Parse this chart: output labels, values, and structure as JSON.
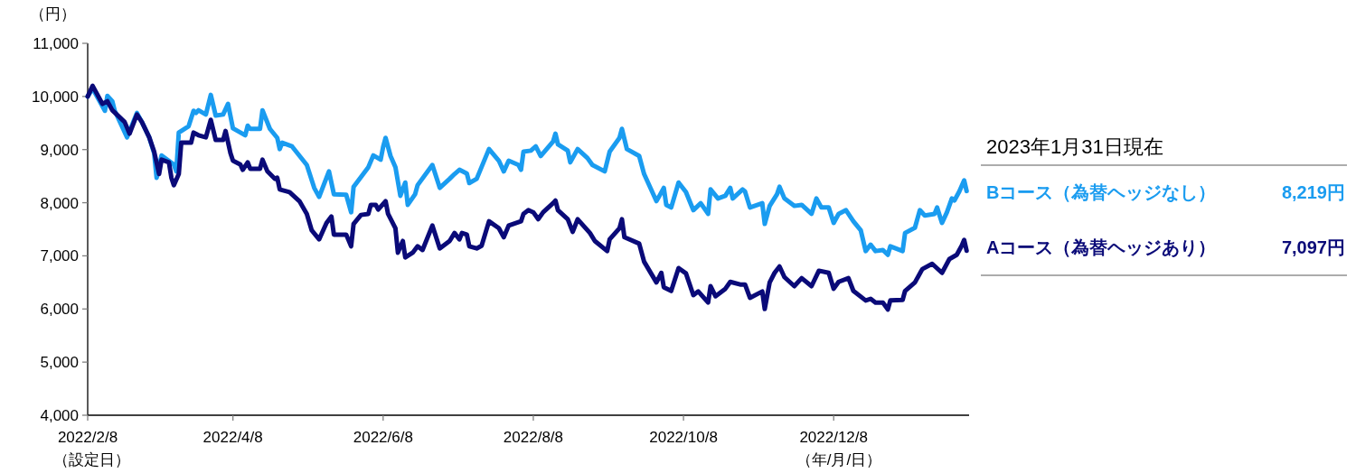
{
  "chart_data": {
    "type": "line",
    "ylabel": "（円）",
    "xlabel": "（年/月/日）",
    "legend_title": "2023年1月31日現在",
    "legend": "right",
    "grid": false,
    "line_style": "solid",
    "marker": "none",
    "xlim": [
      "2022-02-08",
      "2023-02-01"
    ],
    "ylim": [
      4000,
      11000
    ],
    "xticks": [
      {
        "value": "2022-02-08",
        "label": "2022/2/8"
      },
      {
        "value": "2022-04-08",
        "label": "2022/4/8"
      },
      {
        "value": "2022-06-08",
        "label": "2022/6/8"
      },
      {
        "value": "2022-08-08",
        "label": "2022/8/8"
      },
      {
        "value": "2022-10-08",
        "label": "2022/10/8"
      },
      {
        "value": "2022-12-08",
        "label": "2022/12/8"
      }
    ],
    "yticks": [
      {
        "value": 4000,
        "label": "4,000"
      },
      {
        "value": 5000,
        "label": "5,000"
      },
      {
        "value": 6000,
        "label": "6,000"
      },
      {
        "value": 7000,
        "label": "7,000"
      },
      {
        "value": 8000,
        "label": "8,000"
      },
      {
        "value": 9000,
        "label": "9,000"
      },
      {
        "value": 10000,
        "label": "10,000"
      },
      {
        "value": 11000,
        "label": "11,000"
      }
    ],
    "annotations": [
      "（設定日）",
      "8,219円",
      "7,097円"
    ],
    "series": [
      {
        "name": "Bコース（為替ヘッジなし）",
        "color": "#1a9cf0",
        "x": [
          "2022-02-08",
          "2022-02-10",
          "2022-02-15",
          "2022-02-16",
          "2022-02-18",
          "2022-02-19",
          "2022-02-24",
          "2022-02-28",
          "2022-03-02",
          "2022-03-05",
          "2022-03-07",
          "2022-03-08",
          "2022-03-10",
          "2022-03-15",
          "2022-03-16",
          "2022-03-17",
          "2022-03-21",
          "2022-03-23",
          "2022-03-24",
          "2022-03-25",
          "2022-03-28",
          "2022-03-30",
          "2022-04-01",
          "2022-04-04",
          "2022-04-06",
          "2022-04-08",
          "2022-04-13",
          "2022-04-14",
          "2022-04-15",
          "2022-04-19",
          "2022-04-20",
          "2022-04-23",
          "2022-04-26",
          "2022-04-27",
          "2022-04-28",
          "2022-05-02",
          "2022-05-08",
          "2022-05-11",
          "2022-05-13",
          "2022-05-16",
          "2022-05-17",
          "2022-05-19",
          "2022-05-24",
          "2022-05-26",
          "2022-05-27",
          "2022-06-02",
          "2022-06-04",
          "2022-06-07",
          "2022-06-08",
          "2022-06-09",
          "2022-06-11",
          "2022-06-13",
          "2022-06-15",
          "2022-06-17",
          "2022-06-18",
          "2022-06-21",
          "2022-06-22",
          "2022-06-28",
          "2022-07-01",
          "2022-07-05",
          "2022-07-07",
          "2022-07-09",
          "2022-07-12",
          "2022-07-13",
          "2022-07-16",
          "2022-07-21",
          "2022-07-25",
          "2022-07-27",
          "2022-07-29",
          "2022-08-02",
          "2022-08-03",
          "2022-08-04",
          "2022-08-07",
          "2022-08-09",
          "2022-08-11",
          "2022-08-16",
          "2022-08-17",
          "2022-08-18",
          "2022-08-22",
          "2022-08-23",
          "2022-08-26",
          "2022-08-30",
          "2022-09-01",
          "2022-09-06",
          "2022-09-08",
          "2022-09-12",
          "2022-09-13",
          "2022-09-15",
          "2022-09-20",
          "2022-09-22",
          "2022-09-27",
          "2022-09-28",
          "2022-09-30",
          "2022-10-01",
          "2022-10-03",
          "2022-10-06",
          "2022-10-09",
          "2022-10-12",
          "2022-10-15",
          "2022-10-18",
          "2022-10-19",
          "2022-10-22",
          "2022-10-25",
          "2022-10-27",
          "2022-10-28",
          "2022-11-01",
          "2022-11-02",
          "2022-11-04",
          "2022-11-09",
          "2022-11-10",
          "2022-11-12",
          "2022-11-15",
          "2022-11-16",
          "2022-11-18",
          "2022-11-22",
          "2022-11-25",
          "2022-11-29",
          "2022-12-01",
          "2022-12-03",
          "2022-12-06",
          "2022-12-08",
          "2022-12-10",
          "2022-12-13",
          "2022-12-16",
          "2022-12-19",
          "2022-12-21",
          "2022-12-23",
          "2022-12-25",
          "2022-12-28",
          "2022-12-30",
          "2022-12-31",
          "2023-01-05",
          "2023-01-06",
          "2023-01-10",
          "2023-01-12",
          "2023-01-14",
          "2023-01-18",
          "2023-01-19",
          "2023-01-21",
          "2023-01-23",
          "2023-01-25",
          "2023-01-26",
          "2023-01-28",
          "2023-01-30",
          "2023-01-31"
        ],
        "values": [
          10000,
          10150,
          9730,
          10010,
          9910,
          9730,
          9230,
          9690,
          9520,
          9230,
          8930,
          8470,
          8890,
          8720,
          8590,
          9320,
          9440,
          9730,
          9690,
          9740,
          9660,
          10030,
          9640,
          9660,
          9860,
          9400,
          9270,
          9450,
          9390,
          9390,
          9740,
          9390,
          9220,
          9010,
          9130,
          9060,
          8710,
          8280,
          8110,
          8470,
          8590,
          8160,
          8150,
          7820,
          8300,
          8670,
          8890,
          8810,
          9050,
          9220,
          8880,
          8670,
          8130,
          8380,
          7960,
          8160,
          8330,
          8710,
          8280,
          8450,
          8540,
          8620,
          8550,
          8370,
          8450,
          9010,
          8790,
          8590,
          8790,
          8710,
          8620,
          8960,
          8980,
          9060,
          8880,
          9150,
          9300,
          9100,
          8980,
          8760,
          9010,
          8840,
          8710,
          8590,
          8960,
          9220,
          9390,
          9010,
          8880,
          8540,
          8030,
          8110,
          8280,
          7960,
          7910,
          8380,
          8200,
          7860,
          7990,
          7790,
          8250,
          8080,
          8130,
          8280,
          8080,
          8250,
          8210,
          7910,
          7990,
          7600,
          7940,
          8160,
          8300,
          8080,
          7940,
          7960,
          7790,
          8080,
          7910,
          7910,
          7620,
          7790,
          7860,
          7650,
          7480,
          7090,
          7210,
          7090,
          7110,
          7020,
          7180,
          7090,
          7430,
          7530,
          7860,
          7760,
          7790,
          7910,
          7620,
          7820,
          8080,
          8040,
          8210,
          8420,
          8219
        ]
      },
      {
        "name": "Aコース（為替ヘッジあり）",
        "color": "#0a0a78",
        "x": [
          "2022-02-08",
          "2022-02-10",
          "2022-02-14",
          "2022-02-16",
          "2022-02-18",
          "2022-02-23",
          "2022-02-25",
          "2022-02-28",
          "2022-03-02",
          "2022-03-05",
          "2022-03-07",
          "2022-03-09",
          "2022-03-10",
          "2022-03-13",
          "2022-03-14",
          "2022-03-15",
          "2022-03-17",
          "2022-03-18",
          "2022-03-22",
          "2022-03-23",
          "2022-03-25",
          "2022-03-28",
          "2022-03-30",
          "2022-04-01",
          "2022-04-04",
          "2022-04-05",
          "2022-04-07",
          "2022-04-08",
          "2022-04-11",
          "2022-04-12",
          "2022-04-14",
          "2022-04-15",
          "2022-04-19",
          "2022-04-20",
          "2022-04-22",
          "2022-04-25",
          "2022-04-26",
          "2022-04-27",
          "2022-05-01",
          "2022-05-05",
          "2022-05-08",
          "2022-05-10",
          "2022-05-13",
          "2022-05-16",
          "2022-05-18",
          "2022-05-19",
          "2022-05-24",
          "2022-05-26",
          "2022-05-27",
          "2022-05-30",
          "2022-06-02",
          "2022-06-03",
          "2022-06-05",
          "2022-06-06",
          "2022-06-09",
          "2022-06-10",
          "2022-06-13",
          "2022-06-14",
          "2022-06-16",
          "2022-06-17",
          "2022-06-20",
          "2022-06-22",
          "2022-06-24",
          "2022-06-28",
          "2022-07-01",
          "2022-07-05",
          "2022-07-07",
          "2022-07-09",
          "2022-07-10",
          "2022-07-12",
          "2022-07-13",
          "2022-07-16",
          "2022-07-18",
          "2022-07-21",
          "2022-07-25",
          "2022-07-27",
          "2022-07-29",
          "2022-08-03",
          "2022-08-04",
          "2022-08-06",
          "2022-08-08",
          "2022-08-10",
          "2022-08-12",
          "2022-08-16",
          "2022-08-17",
          "2022-08-18",
          "2022-08-22",
          "2022-08-24",
          "2022-08-26",
          "2022-08-31",
          "2022-09-02",
          "2022-09-07",
          "2022-09-08",
          "2022-09-12",
          "2022-09-13",
          "2022-09-14",
          "2022-09-20",
          "2022-09-22",
          "2022-09-27",
          "2022-09-29",
          "2022-09-30",
          "2022-10-03",
          "2022-10-06",
          "2022-10-09",
          "2022-10-12",
          "2022-10-14",
          "2022-10-18",
          "2022-10-19",
          "2022-10-21",
          "2022-10-25",
          "2022-10-27",
          "2022-10-31",
          "2022-11-02",
          "2022-11-04",
          "2022-11-09",
          "2022-11-10",
          "2022-11-12",
          "2022-11-14",
          "2022-11-16",
          "2022-11-18",
          "2022-11-22",
          "2022-11-25",
          "2022-11-29",
          "2022-12-02",
          "2022-12-06",
          "2022-12-08",
          "2022-12-10",
          "2022-12-14",
          "2022-12-16",
          "2022-12-21",
          "2022-12-23",
          "2022-12-25",
          "2022-12-28",
          "2022-12-30",
          "2022-12-31",
          "2023-01-05",
          "2023-01-06",
          "2023-01-10",
          "2023-01-13",
          "2023-01-17",
          "2023-01-21",
          "2023-01-24",
          "2023-01-27",
          "2023-01-29",
          "2023-01-30",
          "2023-01-31"
        ],
        "values": [
          10000,
          10200,
          9860,
          9910,
          9740,
          9520,
          9300,
          9660,
          9520,
          9230,
          8960,
          8540,
          8810,
          8760,
          8470,
          8330,
          8540,
          9130,
          9130,
          9320,
          9270,
          9230,
          9560,
          9180,
          9180,
          9350,
          8930,
          8790,
          8720,
          8620,
          8760,
          8640,
          8640,
          8810,
          8590,
          8450,
          8470,
          8250,
          8200,
          8030,
          7790,
          7480,
          7310,
          7620,
          7740,
          7400,
          7400,
          7180,
          7600,
          7770,
          7790,
          7960,
          7960,
          7870,
          8030,
          7790,
          7520,
          7060,
          7280,
          6970,
          7060,
          7180,
          7110,
          7570,
          7140,
          7280,
          7430,
          7310,
          7430,
          7400,
          7180,
          7140,
          7190,
          7650,
          7520,
          7350,
          7570,
          7650,
          7790,
          7860,
          7820,
          7690,
          7820,
          7990,
          8040,
          7860,
          7690,
          7450,
          7690,
          7430,
          7280,
          7090,
          7310,
          7520,
          7690,
          7350,
          7230,
          6890,
          6500,
          6680,
          6410,
          6340,
          6770,
          6670,
          6260,
          6330,
          6120,
          6430,
          6240,
          6380,
          6510,
          6460,
          6460,
          6210,
          6330,
          6000,
          6500,
          6680,
          6800,
          6600,
          6430,
          6580,
          6430,
          6720,
          6680,
          6380,
          6510,
          6580,
          6340,
          6160,
          6190,
          6120,
          6120,
          5990,
          6160,
          6170,
          6340,
          6500,
          6750,
          6850,
          6680,
          6940,
          7020,
          7190,
          7300,
          7097
        ]
      }
    ]
  }
}
